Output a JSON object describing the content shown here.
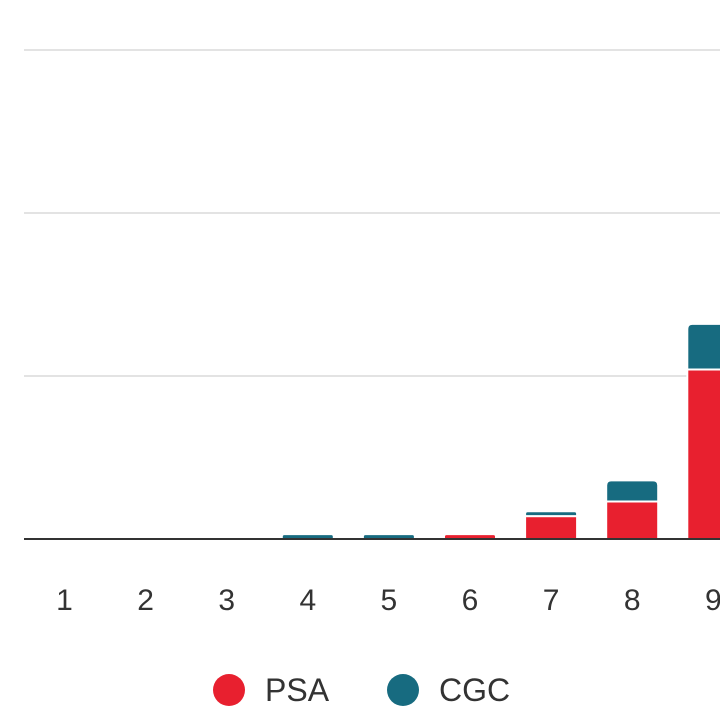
{
  "colors": {
    "psa": "#e8202f",
    "cgc": "#176b80",
    "grid": "#e3e3e3",
    "axis": "#333333",
    "text": "#333333"
  },
  "chart_data": {
    "type": "bar",
    "stacked": true,
    "categories": [
      "1",
      "2",
      "3",
      "4",
      "5",
      "6",
      "7",
      "8",
      "9"
    ],
    "series": [
      {
        "name": "PSA",
        "color": "#e8202f",
        "values": [
          0,
          0,
          0,
          0,
          0,
          3,
          14,
          23,
          104
        ]
      },
      {
        "name": "CGC",
        "color": "#176b80",
        "values": [
          0,
          0,
          0,
          3,
          3,
          0,
          3,
          13,
          28
        ]
      }
    ],
    "ylim": [
      0,
      300
    ],
    "yticks": [
      0,
      100,
      200,
      300
    ],
    "grid": true,
    "legend": "bottom",
    "title": "",
    "xlabel": "",
    "ylabel": ""
  }
}
